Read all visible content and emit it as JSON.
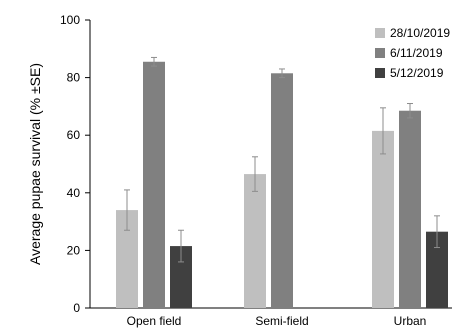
{
  "chart_data": {
    "type": "bar",
    "title": "",
    "xlabel": "",
    "ylabel": "Average pupae survival (% ±SE)",
    "ylim": [
      0,
      100
    ],
    "yticks": [
      0,
      20,
      40,
      60,
      80,
      100
    ],
    "grid": false,
    "legend_position": "top-right",
    "categories": [
      "Open field",
      "Semi-field",
      "Urban"
    ],
    "series": [
      {
        "name": "28/10/2019",
        "color": "#bfbfbf",
        "values": [
          34,
          46.5,
          61.5
        ],
        "errors": [
          7,
          6,
          8
        ]
      },
      {
        "name": "6/11/2019",
        "color": "#808080",
        "values": [
          85.5,
          81.5,
          68.5
        ],
        "errors": [
          1.5,
          1.5,
          2.5
        ]
      },
      {
        "name": "5/12/2019",
        "color": "#404040",
        "values": [
          21.5,
          null,
          26.5
        ],
        "errors": [
          5.5,
          null,
          5.5
        ]
      }
    ]
  }
}
